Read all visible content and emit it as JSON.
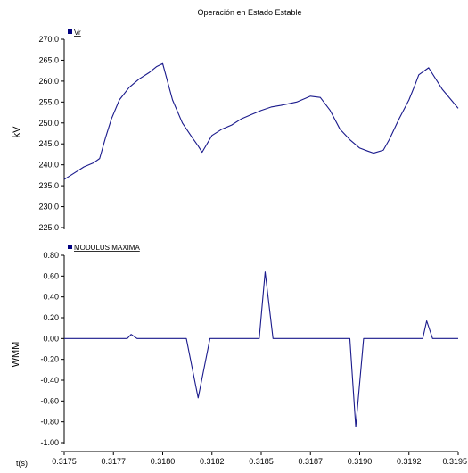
{
  "title": "Operación en Estado Estable",
  "x_axis_label": "t(s)",
  "x_tick_labels": [
    "0.3175",
    "0.3177",
    "0.3180",
    "0.3182",
    "0.3185",
    "0.3187",
    "0.3190",
    "0.3192",
    "0.3195"
  ],
  "colors": {
    "series": "#1a1a8c",
    "legend_marker": "#000080",
    "axis": "#000000"
  },
  "chart_data": [
    {
      "type": "line",
      "ylabel": "kV",
      "legend": "Vr",
      "xlim": [
        0.3175,
        0.3195
      ],
      "ylim": [
        225.0,
        270.0
      ],
      "y_tick_labels": [
        "270.0",
        "265.0",
        "260.0",
        "255.0",
        "250.0",
        "245.0",
        "240.0",
        "235.0",
        "230.0",
        "225.0"
      ],
      "y_ticks": [
        270,
        265,
        260,
        255,
        250,
        245,
        240,
        235,
        230,
        225
      ],
      "series": [
        {
          "name": "Vr",
          "x": [
            0.3175,
            0.31755,
            0.3176,
            0.31765,
            0.31768,
            0.31771,
            0.31774,
            0.31778,
            0.31783,
            0.31788,
            0.31793,
            0.31797,
            0.318,
            0.31805,
            0.3181,
            0.31815,
            0.31818,
            0.3182,
            0.31825,
            0.3183,
            0.31835,
            0.3184,
            0.31845,
            0.3185,
            0.31855,
            0.3186,
            0.31863,
            0.31868,
            0.31872,
            0.31875,
            0.3188,
            0.31885,
            0.3189,
            0.31895,
            0.319,
            0.31904,
            0.31907,
            0.31912,
            0.31915,
            0.3192,
            0.31925,
            0.31928,
            0.3193,
            0.31935,
            0.31942,
            0.3195
          ],
          "values": [
            236.5,
            238.0,
            239.5,
            240.5,
            241.5,
            246.5,
            251.0,
            255.5,
            258.5,
            260.5,
            262.0,
            263.5,
            264.2,
            255.5,
            250.0,
            246.5,
            244.5,
            243.0,
            247.0,
            248.5,
            249.5,
            251.0,
            252.0,
            253.0,
            253.8,
            254.2,
            254.5,
            255.0,
            255.8,
            256.4,
            256.1,
            253.0,
            248.5,
            246.0,
            244.0,
            243.3,
            242.8,
            243.5,
            246.0,
            251.0,
            255.5,
            259.0,
            261.5,
            263.2,
            258.0,
            253.5
          ]
        }
      ]
    },
    {
      "type": "line",
      "ylabel": "WMM",
      "legend": "MODULUS MAXIMA",
      "xlim": [
        0.3175,
        0.3195
      ],
      "ylim": [
        -1.0,
        0.8
      ],
      "y_tick_labels": [
        "0.80",
        "0.60",
        "0.40",
        "0.20",
        "0.00",
        "-0.20",
        "-0.40",
        "-0.60",
        "-0.80",
        "-1.00"
      ],
      "y_ticks": [
        0.8,
        0.6,
        0.4,
        0.2,
        0.0,
        -0.2,
        -0.4,
        -0.6,
        -0.8,
        -1.0
      ],
      "series": [
        {
          "name": "MODULUS MAXIMA",
          "x": [
            0.3175,
            0.3178,
            0.31782,
            0.31784,
            0.31787,
            0.31789,
            0.31797,
            0.31812,
            0.31818,
            0.31824,
            0.31835,
            0.31845,
            0.31849,
            0.31852,
            0.31856,
            0.3186,
            0.31885,
            0.31895,
            0.31898,
            0.31902,
            0.31905,
            0.31915,
            0.3192,
            0.31932,
            0.31934,
            0.31937,
            0.31941,
            0.3195
          ],
          "values": [
            0.0,
            0.0,
            0.0,
            0.04,
            0.0,
            0.0,
            0.0,
            0.0,
            -0.57,
            0.0,
            0.0,
            0.0,
            0.0,
            0.64,
            0.0,
            0.0,
            0.0,
            0.0,
            -0.85,
            0.0,
            0.0,
            0.0,
            0.0,
            0.0,
            0.17,
            0.0,
            0.0,
            0.0
          ]
        }
      ]
    }
  ]
}
